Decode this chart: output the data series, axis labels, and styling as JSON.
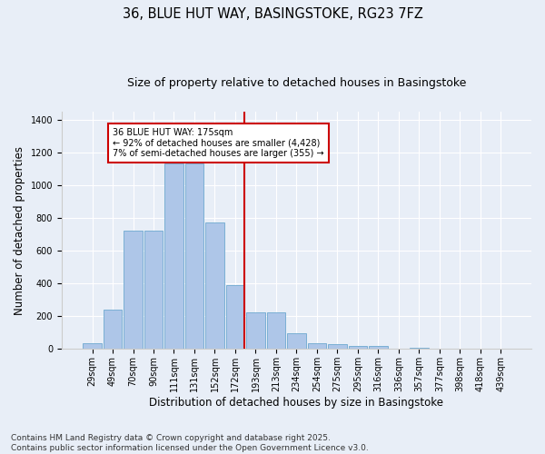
{
  "title_line1": "36, BLUE HUT WAY, BASINGSTOKE, RG23 7FZ",
  "title_line2": "Size of property relative to detached houses in Basingstoke",
  "xlabel": "Distribution of detached houses by size in Basingstoke",
  "ylabel": "Number of detached properties",
  "bar_labels": [
    "29sqm",
    "49sqm",
    "70sqm",
    "90sqm",
    "111sqm",
    "131sqm",
    "152sqm",
    "172sqm",
    "193sqm",
    "213sqm",
    "234sqm",
    "254sqm",
    "275sqm",
    "295sqm",
    "316sqm",
    "336sqm",
    "357sqm",
    "377sqm",
    "398sqm",
    "418sqm",
    "439sqm"
  ],
  "bar_values": [
    35,
    240,
    720,
    720,
    1130,
    1135,
    775,
    390,
    225,
    225,
    95,
    35,
    30,
    20,
    18,
    0,
    10,
    0,
    0,
    0,
    0
  ],
  "bar_color": "#aec6e8",
  "bar_edge_color": "#7aafd4",
  "vline_color": "#cc0000",
  "annotation_text": "36 BLUE HUT WAY: 175sqm\n← 92% of detached houses are smaller (4,428)\n7% of semi-detached houses are larger (355) →",
  "annotation_box_color": "#cc0000",
  "annotation_facecolor": "white",
  "background_color": "#e8eef7",
  "plot_background": "#e8eef7",
  "ylim": [
    0,
    1450
  ],
  "yticks": [
    0,
    200,
    400,
    600,
    800,
    1000,
    1200,
    1400
  ],
  "footnote": "Contains HM Land Registry data © Crown copyright and database right 2025.\nContains public sector information licensed under the Open Government Licence v3.0.",
  "title_fontsize": 10.5,
  "subtitle_fontsize": 9,
  "axis_label_fontsize": 8.5,
  "tick_fontsize": 7,
  "footnote_fontsize": 6.5
}
